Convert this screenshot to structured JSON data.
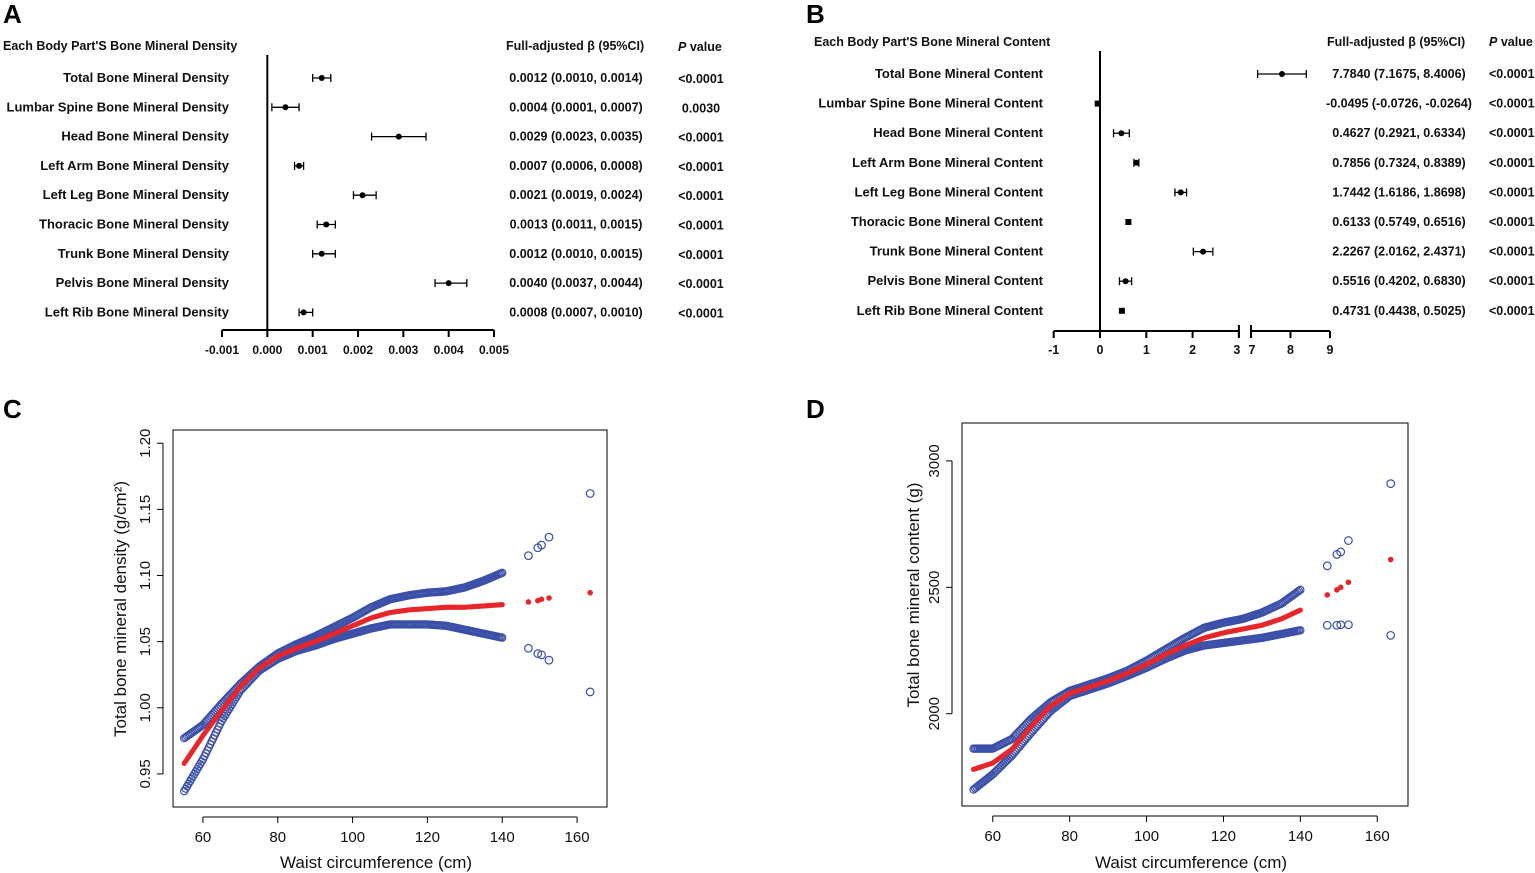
{
  "panels": {
    "a": "A",
    "b": "B",
    "c": "C",
    "d": "D"
  },
  "chart_data": [
    {
      "type": "forest",
      "panel": "A",
      "title": "Each Body Part'S Bone Mineral Density",
      "beta_header": "Full-adjusted β (95%CI)",
      "p_header_italic": "P",
      "p_header_rest": " value",
      "xlim": [
        -0.001,
        0.005
      ],
      "ticks": [
        -0.001,
        0.0,
        0.001,
        0.002,
        0.003,
        0.004,
        0.005
      ],
      "tick_labels": [
        "-0.001",
        "0.000",
        "0.001",
        "0.002",
        "0.003",
        "0.004",
        "0.005"
      ],
      "rows": [
        {
          "label": "Total Bone Mineral Density",
          "beta": 0.0012,
          "lo": 0.001,
          "hi": 0.0014,
          "ci_text": "0.0012 (0.0010, 0.0014)",
          "p": "<0.0001"
        },
        {
          "label": "Lumbar Spine Bone Mineral Density",
          "beta": 0.0004,
          "lo": 0.0001,
          "hi": 0.0007,
          "ci_text": "0.0004 (0.0001, 0.0007)",
          "p": "0.0030"
        },
        {
          "label": "Head Bone Mineral Density",
          "beta": 0.0029,
          "lo": 0.0023,
          "hi": 0.0035,
          "ci_text": "0.0029 (0.0023, 0.0035)",
          "p": "<0.0001"
        },
        {
          "label": "Left Arm Bone Mineral Density",
          "beta": 0.0007,
          "lo": 0.0006,
          "hi": 0.0008,
          "ci_text": "0.0007 (0.0006, 0.0008)",
          "p": "<0.0001"
        },
        {
          "label": "Left Leg Bone Mineral Density",
          "beta": 0.0021,
          "lo": 0.0019,
          "hi": 0.0024,
          "ci_text": "0.0021 (0.0019, 0.0024)",
          "p": "<0.0001"
        },
        {
          "label": "Thoracic  Bone Mineral Density",
          "beta": 0.0013,
          "lo": 0.0011,
          "hi": 0.0015,
          "ci_text": "0.0013 (0.0011, 0.0015)",
          "p": "<0.0001"
        },
        {
          "label": "Trunk Bone Mineral Density",
          "beta": 0.0012,
          "lo": 0.001,
          "hi": 0.0015,
          "ci_text": "0.0012 (0.0010, 0.0015)",
          "p": "<0.0001"
        },
        {
          "label": "Pelvis Bone Mineral Density",
          "beta": 0.004,
          "lo": 0.0037,
          "hi": 0.0044,
          "ci_text": "0.0040 (0.0037, 0.0044)",
          "p": "<0.0001"
        },
        {
          "label": "Left Rib Bone Mineral Density",
          "beta": 0.0008,
          "lo": 0.0007,
          "hi": 0.001,
          "ci_text": "0.0008 (0.0007, 0.0010)",
          "p": "<0.0001"
        }
      ]
    },
    {
      "type": "forest",
      "panel": "B",
      "title": "Each Body Part'S Bone Mineral Content",
      "beta_header": "Full-adjusted β (95%CI)",
      "p_header_italic": "P",
      "p_header_rest": " value",
      "axis_break": [
        3,
        7
      ],
      "ticks": [
        -1,
        0,
        1,
        2,
        3,
        7,
        8,
        9
      ],
      "tick_labels": [
        "-1",
        "0",
        "1",
        "2",
        "3",
        "7",
        "8",
        "9"
      ],
      "rows": [
        {
          "label": "Total Bone Mineral Content",
          "beta": 7.784,
          "lo": 7.1675,
          "hi": 8.4006,
          "ci_text": "7.7840 (7.1675, 8.4006)",
          "p": "<0.0001"
        },
        {
          "label": "Lumbar Spine Bone Mineral Content",
          "beta": -0.0495,
          "lo": -0.0726,
          "hi": -0.0264,
          "ci_text": "-0.0495 (-0.0726, -0.0264)",
          "p": "<0.0001"
        },
        {
          "label": "Head Bone Mineral Content",
          "beta": 0.4627,
          "lo": 0.2921,
          "hi": 0.6334,
          "ci_text": "0.4627 (0.2921, 0.6334)",
          "p": "<0.0001"
        },
        {
          "label": "Left Arm Bone Mineral Content",
          "beta": 0.7856,
          "lo": 0.7324,
          "hi": 0.8389,
          "ci_text": "0.7856 (0.7324, 0.8389)",
          "p": "<0.0001"
        },
        {
          "label": "Left Leg Bone Mineral Content",
          "beta": 1.7442,
          "lo": 1.6186,
          "hi": 1.8698,
          "ci_text": "1.7442 (1.6186, 1.8698)",
          "p": "<0.0001"
        },
        {
          "label": "Thoracic  Bone Mineral  Content",
          "beta": 0.6133,
          "lo": 0.5749,
          "hi": 0.6516,
          "ci_text": "0.6133 (0.5749, 0.6516)",
          "p": "<0.0001"
        },
        {
          "label": "Trunk Bone Mineral Content",
          "beta": 2.2267,
          "lo": 2.0162,
          "hi": 2.4371,
          "ci_text": "2.2267 (2.0162, 2.4371)",
          "p": "<0.0001"
        },
        {
          "label": "Pelvis Bone Mineral Content",
          "beta": 0.5516,
          "lo": 0.4202,
          "hi": 0.683,
          "ci_text": "0.5516 (0.4202, 0.6830)",
          "p": "<0.0001"
        },
        {
          "label": "Left Rib Bone Mineral   Content",
          "beta": 0.4731,
          "lo": 0.4438,
          "hi": 0.5025,
          "ci_text": "0.4731 (0.4438, 0.5025)",
          "p": "<0.0001"
        }
      ]
    },
    {
      "type": "scatter",
      "panel": "C",
      "xlabel": "Waist circumference (cm)",
      "ylabel": "Total bone mineral density (g/cm²)",
      "xlim": [
        52,
        168
      ],
      "ylim": [
        0.925,
        1.21
      ],
      "xticks": [
        60,
        80,
        100,
        120,
        140,
        160
      ],
      "yticks": [
        0.95,
        1.0,
        1.05,
        1.1,
        1.15,
        1.2
      ],
      "ytick_labels": [
        "0.95",
        "1.00",
        "1.05",
        "1.10",
        "1.15",
        "1.20"
      ],
      "fit_points": [
        [
          55,
          0.958
        ],
        [
          60,
          0.979
        ],
        [
          65,
          0.998
        ],
        [
          70,
          1.016
        ],
        [
          75,
          1.03
        ],
        [
          80,
          1.039
        ],
        [
          85,
          1.045
        ],
        [
          90,
          1.05
        ],
        [
          95,
          1.056
        ],
        [
          100,
          1.062
        ],
        [
          105,
          1.068
        ],
        [
          110,
          1.072
        ],
        [
          115,
          1.074
        ],
        [
          120,
          1.075
        ],
        [
          125,
          1.076
        ],
        [
          130,
          1.076
        ],
        [
          135,
          1.077
        ],
        [
          140,
          1.078
        ]
      ],
      "upper_points": [
        [
          55,
          0.977
        ],
        [
          60,
          0.987
        ],
        [
          65,
          1.003
        ],
        [
          70,
          1.018
        ],
        [
          75,
          1.031
        ],
        [
          80,
          1.041
        ],
        [
          85,
          1.048
        ],
        [
          90,
          1.054
        ],
        [
          95,
          1.061
        ],
        [
          100,
          1.068
        ],
        [
          105,
          1.076
        ],
        [
          110,
          1.082
        ],
        [
          115,
          1.085
        ],
        [
          120,
          1.087
        ],
        [
          125,
          1.088
        ],
        [
          130,
          1.091
        ],
        [
          135,
          1.096
        ],
        [
          140,
          1.102
        ]
      ],
      "lower_points": [
        [
          55,
          0.937
        ],
        [
          60,
          0.961
        ],
        [
          65,
          0.99
        ],
        [
          70,
          1.013
        ],
        [
          75,
          1.028
        ],
        [
          80,
          1.037
        ],
        [
          85,
          1.043
        ],
        [
          90,
          1.047
        ],
        [
          95,
          1.052
        ],
        [
          100,
          1.056
        ],
        [
          105,
          1.06
        ],
        [
          110,
          1.063
        ],
        [
          115,
          1.063
        ],
        [
          120,
          1.063
        ],
        [
          125,
          1.062
        ],
        [
          130,
          1.059
        ],
        [
          135,
          1.056
        ],
        [
          140,
          1.053
        ]
      ],
      "outlier_fit": [
        [
          147,
          1.08
        ],
        [
          149.5,
          1.081
        ],
        [
          150.5,
          1.082
        ],
        [
          152.5,
          1.083
        ],
        [
          163.5,
          1.087
        ]
      ],
      "outlier_upper": [
        [
          147,
          1.115
        ],
        [
          149.5,
          1.121
        ],
        [
          150.5,
          1.123
        ],
        [
          152.5,
          1.129
        ],
        [
          163.5,
          1.162
        ]
      ],
      "outlier_lower": [
        [
          147,
          1.045
        ],
        [
          149.5,
          1.041
        ],
        [
          150.5,
          1.04
        ],
        [
          152.5,
          1.036
        ],
        [
          163.5,
          1.012
        ]
      ]
    },
    {
      "type": "scatter",
      "panel": "D",
      "xlabel": "Waist circumference (cm)",
      "ylabel": "Total bone mineral content (g)",
      "xlim": [
        52,
        168
      ],
      "ylim": [
        1635,
        3150
      ],
      "xticks": [
        60,
        80,
        100,
        120,
        140,
        160
      ],
      "yticks": [
        2000,
        2500,
        3000
      ],
      "ytick_labels": [
        "2000",
        "2500",
        "3000"
      ],
      "fit_points": [
        [
          55,
          1780
        ],
        [
          60,
          1805
        ],
        [
          65,
          1860
        ],
        [
          70,
          1950
        ],
        [
          75,
          2030
        ],
        [
          80,
          2080
        ],
        [
          85,
          2105
        ],
        [
          90,
          2130
        ],
        [
          95,
          2160
        ],
        [
          100,
          2195
        ],
        [
          105,
          2235
        ],
        [
          110,
          2270
        ],
        [
          115,
          2300
        ],
        [
          120,
          2320
        ],
        [
          125,
          2335
        ],
        [
          130,
          2350
        ],
        [
          135,
          2375
        ],
        [
          140,
          2410
        ]
      ],
      "upper_points": [
        [
          55,
          1862
        ],
        [
          60,
          1862
        ],
        [
          65,
          1900
        ],
        [
          70,
          1980
        ],
        [
          75,
          2045
        ],
        [
          80,
          2090
        ],
        [
          85,
          2115
        ],
        [
          90,
          2140
        ],
        [
          95,
          2170
        ],
        [
          100,
          2210
        ],
        [
          105,
          2255
        ],
        [
          110,
          2300
        ],
        [
          115,
          2340
        ],
        [
          120,
          2360
        ],
        [
          125,
          2375
        ],
        [
          130,
          2400
        ],
        [
          135,
          2435
        ],
        [
          140,
          2490
        ]
      ],
      "lower_points": [
        [
          55,
          1700
        ],
        [
          60,
          1760
        ],
        [
          65,
          1835
        ],
        [
          70,
          1925
        ],
        [
          75,
          2010
        ],
        [
          80,
          2070
        ],
        [
          85,
          2095
        ],
        [
          90,
          2120
        ],
        [
          95,
          2150
        ],
        [
          100,
          2182
        ],
        [
          105,
          2218
        ],
        [
          110,
          2250
        ],
        [
          115,
          2270
        ],
        [
          120,
          2280
        ],
        [
          125,
          2290
        ],
        [
          130,
          2300
        ],
        [
          135,
          2315
        ],
        [
          140,
          2330
        ]
      ],
      "outlier_fit": [
        [
          147,
          2470
        ],
        [
          149.5,
          2490
        ],
        [
          150.5,
          2500
        ],
        [
          152.5,
          2520
        ],
        [
          163.5,
          2610
        ]
      ],
      "outlier_upper": [
        [
          147,
          2585
        ],
        [
          149.5,
          2630
        ],
        [
          150.5,
          2640
        ],
        [
          152.5,
          2685
        ],
        [
          163.5,
          2910
        ]
      ],
      "outlier_lower": [
        [
          147,
          2350
        ],
        [
          149.5,
          2350
        ],
        [
          150.5,
          2352
        ],
        [
          152.5,
          2352
        ],
        [
          163.5,
          2310
        ]
      ]
    }
  ],
  "colors": {
    "band": "#3a4fa8",
    "fit": "#e8262a",
    "axis": "#000000"
  }
}
